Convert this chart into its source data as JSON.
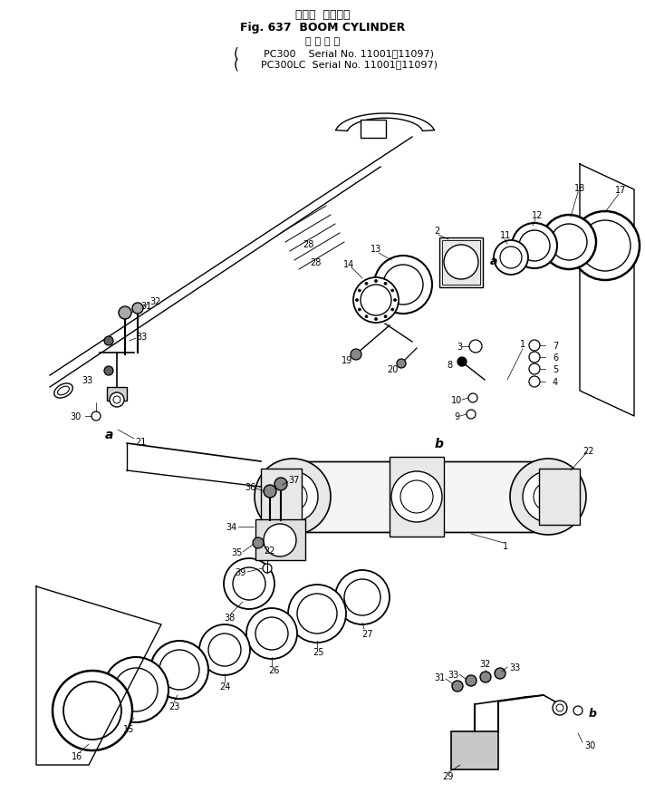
{
  "title_jp": "ブーム  シリンダ",
  "title_en": "Fig. 637  BOOM CYLINDER",
  "sub_jp": "適 用 号 機",
  "sub1": "PC300    Serial No. 11001～11097)",
  "sub2": "(PC300LC  Serial No. 11001～11097)",
  "bg": "#ffffff",
  "lc": "#000000"
}
